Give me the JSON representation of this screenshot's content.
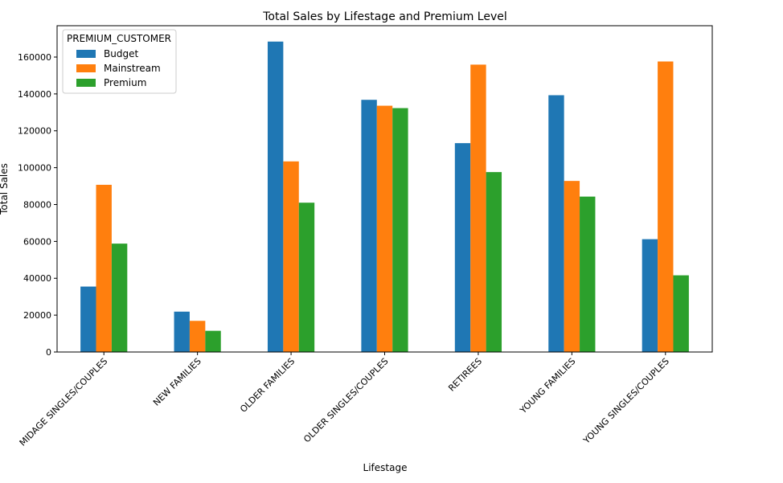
{
  "chart_data": {
    "type": "bar",
    "title": "Total Sales by Lifestage and Premium Level",
    "xlabel": "Lifestage",
    "ylabel": "Total Sales",
    "categories": [
      "MIDAGE SINGLES/COUPLES",
      "NEW FAMILIES",
      "OLDER FAMILIES",
      "OLDER SINGLES/COUPLES",
      "RETIREES",
      "YOUNG FAMILIES",
      "YOUNG SINGLES/COUPLES"
    ],
    "series": [
      {
        "name": "Budget",
        "color": "#1f77b4",
        "values": [
          35500,
          21900,
          168400,
          136800,
          113300,
          139300,
          61200
        ]
      },
      {
        "name": "Mainstream",
        "color": "#ff7f0e",
        "values": [
          90700,
          16900,
          103400,
          133600,
          155900,
          92800,
          157600
        ]
      },
      {
        "name": "Premium",
        "color": "#2ca02c",
        "values": [
          58800,
          11500,
          81000,
          132300,
          97600,
          84300,
          41600
        ]
      }
    ],
    "ylim": [
      0,
      177000
    ],
    "yticks": [
      0,
      20000,
      40000,
      60000,
      80000,
      100000,
      120000,
      140000,
      160000
    ],
    "legend": {
      "title": "PREMIUM_CUSTOMER",
      "placement": "top-left"
    },
    "grid": false
  }
}
